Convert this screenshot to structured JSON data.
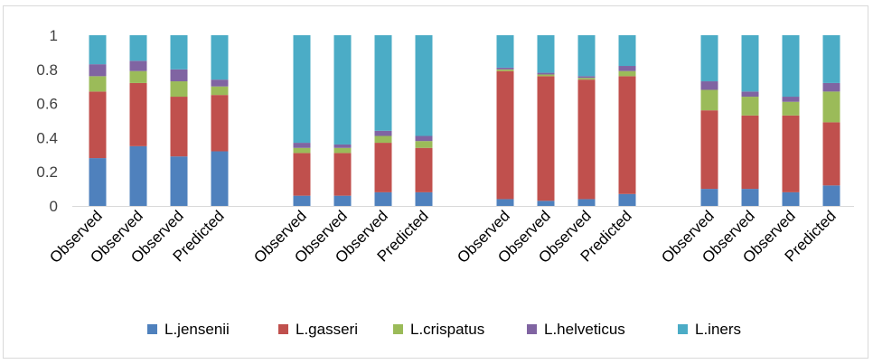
{
  "chart_data": {
    "type": "bar",
    "stacked": true,
    "categories": [
      "Observed",
      "Observed",
      "Observed",
      "Predicted",
      "Observed",
      "Observed",
      "Observed",
      "Predicted",
      "Observed",
      "Observed",
      "Observed",
      "Predicted",
      "Observed",
      "Observed",
      "Observed",
      "Predicted"
    ],
    "groups": [
      [
        0,
        1,
        2,
        3
      ],
      [
        4,
        5,
        6,
        7
      ],
      [
        8,
        9,
        10,
        11
      ],
      [
        12,
        13,
        14,
        15
      ]
    ],
    "series": [
      {
        "name": "L.jensenii",
        "color": "#4f81bd",
        "values": [
          0.28,
          0.35,
          0.29,
          0.32,
          0.06,
          0.06,
          0.08,
          0.08,
          0.04,
          0.03,
          0.04,
          0.07,
          0.1,
          0.1,
          0.08,
          0.12
        ]
      },
      {
        "name": "L.gasseri",
        "color": "#c0504d",
        "values": [
          0.39,
          0.37,
          0.35,
          0.33,
          0.25,
          0.25,
          0.29,
          0.26,
          0.75,
          0.73,
          0.7,
          0.69,
          0.46,
          0.43,
          0.45,
          0.37
        ]
      },
      {
        "name": "L.crispatus",
        "color": "#9bbb59",
        "values": [
          0.09,
          0.07,
          0.09,
          0.05,
          0.03,
          0.03,
          0.04,
          0.04,
          0.01,
          0.01,
          0.01,
          0.03,
          0.12,
          0.11,
          0.08,
          0.18
        ]
      },
      {
        "name": "L.helveticus",
        "color": "#8064a2",
        "values": [
          0.07,
          0.06,
          0.07,
          0.04,
          0.03,
          0.02,
          0.03,
          0.03,
          0.01,
          0.01,
          0.01,
          0.03,
          0.05,
          0.03,
          0.03,
          0.05
        ]
      },
      {
        "name": "L.iners",
        "color": "#4bacc6",
        "values": [
          0.17,
          0.15,
          0.2,
          0.26,
          0.63,
          0.64,
          0.56,
          0.59,
          0.19,
          0.22,
          0.24,
          0.18,
          0.27,
          0.33,
          0.36,
          0.28
        ]
      }
    ],
    "yticks": [
      "0",
      "0.2",
      "0.4",
      "0.6",
      "0.8",
      "1"
    ],
    "ylim": [
      0,
      1
    ],
    "grid": false,
    "legend_position": "bottom"
  }
}
